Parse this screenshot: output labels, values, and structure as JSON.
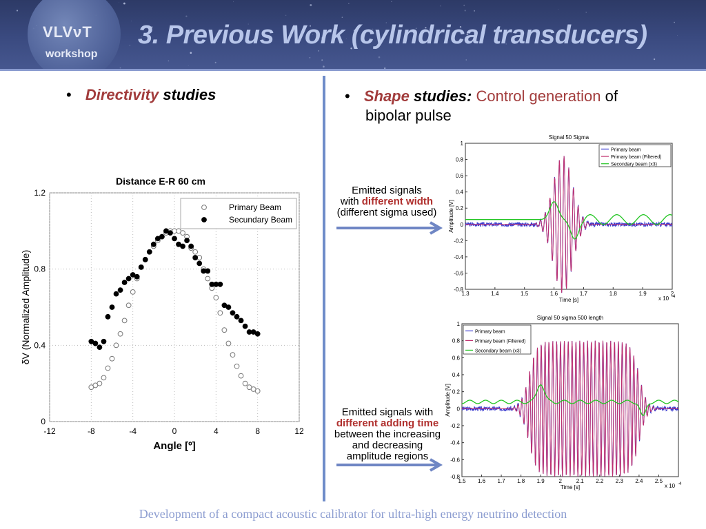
{
  "header": {
    "logo_line1": "VLVνT",
    "logo_line2": "workshop",
    "title": "3.  Previous Work (cylindrical transducers)"
  },
  "left": {
    "bullet": "•",
    "label_word1": "Directivity",
    "label_word2": "studies"
  },
  "right": {
    "bullet": "•",
    "label_word1": "Shape",
    "label_word2": "studies",
    "colon": ":",
    "label_rest_red": "Control generation",
    "label_rest_black": "of",
    "label_line2": "bipolar pulse"
  },
  "note1": {
    "line1": "Emitted signals",
    "line2_pre": "with ",
    "line2_bold": "different width",
    "line3": "(different sigma used)"
  },
  "note2": {
    "line1": "Emitted signals with",
    "line2_bold": "different adding time",
    "line3": "between the  increasing",
    "line4": "and decreasing",
    "line5": "amplitude regions"
  },
  "footer": "Development of a compact acoustic calibrator for ultra-high energy neutrino detection",
  "chart_data": [
    {
      "type": "scatter",
      "title": "Distance E-R  60 cm",
      "xlabel": "Angle [º]",
      "ylabel": "δV (Normalized Amplitude)",
      "xlim": [
        -12,
        12
      ],
      "ylim": [
        0,
        1.2
      ],
      "xticks": [
        "-12",
        "-8",
        "-4",
        "0",
        "4",
        "8",
        "12"
      ],
      "yticks": [
        "0",
        "0.4",
        "0.8",
        "1.2"
      ],
      "grid": true,
      "legend": "top-right",
      "series": [
        {
          "name": "Primary Beam",
          "marker": "open-circle",
          "x": [
            -8,
            -7.6,
            -7.2,
            -6.8,
            -6.4,
            -6,
            -5.6,
            -5.2,
            -4.8,
            -4.4,
            -4,
            -3.6,
            -3.2,
            -2.8,
            -2.4,
            -2,
            -1.6,
            -1.2,
            -0.8,
            -0.4,
            0,
            0.4,
            0.8,
            1.2,
            1.6,
            2,
            2.4,
            2.8,
            3.2,
            3.6,
            4,
            4.4,
            4.8,
            5.2,
            5.6,
            6,
            6.4,
            6.8,
            7.2,
            7.6,
            8
          ],
          "y": [
            0.18,
            0.19,
            0.2,
            0.23,
            0.28,
            0.33,
            0.4,
            0.46,
            0.53,
            0.61,
            0.68,
            0.75,
            0.81,
            0.85,
            0.89,
            0.92,
            0.95,
            0.97,
            0.99,
            1.0,
            1.0,
            1.0,
            0.99,
            0.97,
            0.91,
            0.89,
            0.86,
            0.8,
            0.75,
            0.7,
            0.65,
            0.57,
            0.48,
            0.41,
            0.35,
            0.29,
            0.24,
            0.2,
            0.18,
            0.17,
            0.16
          ]
        },
        {
          "name": "Secundary Beam",
          "marker": "filled-circle",
          "x": [
            -8,
            -7.6,
            -7.2,
            -6.8,
            -6.4,
            -6,
            -5.6,
            -5.2,
            -4.8,
            -4.4,
            -4,
            -3.6,
            -3.2,
            -2.8,
            -2.4,
            -2,
            -1.6,
            -1.2,
            -0.8,
            -0.4,
            0,
            0.4,
            0.8,
            1.2,
            1.6,
            2,
            2.4,
            2.8,
            3.2,
            3.6,
            4,
            4.4,
            4.8,
            5.2,
            5.6,
            6,
            6.4,
            6.8,
            7.2,
            7.6,
            8
          ],
          "y": [
            0.42,
            0.41,
            0.39,
            0.42,
            0.55,
            0.6,
            0.67,
            0.69,
            0.73,
            0.75,
            0.77,
            0.76,
            0.81,
            0.85,
            0.89,
            0.93,
            0.96,
            0.97,
            1.0,
            0.99,
            0.96,
            0.93,
            0.92,
            0.95,
            0.92,
            0.86,
            0.83,
            0.79,
            0.79,
            0.72,
            0.72,
            0.72,
            0.61,
            0.6,
            0.57,
            0.55,
            0.53,
            0.5,
            0.47,
            0.47,
            0.46
          ]
        }
      ]
    },
    {
      "type": "line",
      "title": "Signal 50 Sigma",
      "xlabel": "Time [s]",
      "ylabel": "Amplitude [V]",
      "xlim": [
        1.3,
        2
      ],
      "ylim": [
        -0.8,
        1
      ],
      "xtick_labels": [
        "1.3",
        "1.4",
        "1.5",
        "1.6",
        "1.7",
        "1.8",
        "1.9",
        "2"
      ],
      "ytick_labels": [
        "-0.8",
        "-0.6",
        "-0.4",
        "-0.2",
        "0",
        "0.2",
        "0.4",
        "0.6",
        "0.8",
        "1"
      ],
      "x_multiplier": "x 10",
      "x_exponent": "-4",
      "legend": "top-right",
      "series": [
        {
          "name": "Primary beam",
          "color": "#3a3acf"
        },
        {
          "name": "Primary beam (Filtered)",
          "color": "#c0306e"
        },
        {
          "name": "Secondary beam (x3)",
          "color": "#22c522"
        }
      ]
    },
    {
      "type": "line",
      "title": "Signal 50 sigma 500 length",
      "xlabel": "Time [s]",
      "ylabel": "Amplitude [V]",
      "xlim": [
        1.5,
        2.6
      ],
      "ylim": [
        -0.8,
        1
      ],
      "xtick_labels": [
        "1.5",
        "1.6",
        "1.7",
        "1.8",
        "1.9",
        "2",
        "2.1",
        "2.2",
        "2.3",
        "2.4",
        "2.5"
      ],
      "ytick_labels": [
        "-0.8",
        "-0.6",
        "-0.4",
        "-0.2",
        "0",
        "0.2",
        "0.4",
        "0.6",
        "0.8",
        "1"
      ],
      "x_multiplier": "x 10",
      "x_exponent": "-4",
      "legend": "top-left",
      "series": [
        {
          "name": "Primary beam",
          "color": "#3a3acf"
        },
        {
          "name": "Primary beam (Filtered)",
          "color": "#c0306e"
        },
        {
          "name": "Secondary beam (x3)",
          "color": "#22c522"
        }
      ]
    }
  ]
}
